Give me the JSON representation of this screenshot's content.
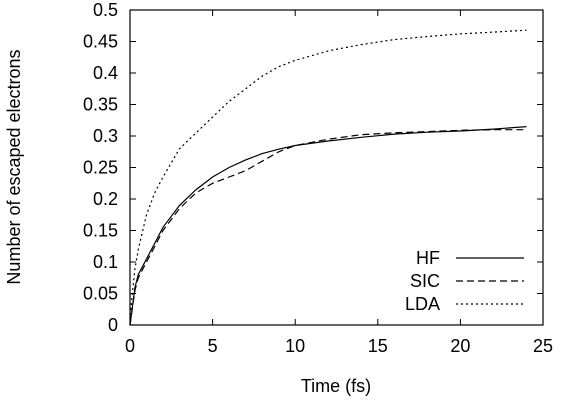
{
  "chart_data": {
    "type": "line",
    "xlabel": "Time (fs)",
    "ylabel": "Number of escaped electrons",
    "xlim": [
      0,
      25
    ],
    "ylim": [
      0,
      0.5
    ],
    "x_ticks": [
      0,
      5,
      10,
      15,
      20,
      25
    ],
    "y_ticks": [
      0,
      0.05,
      0.1,
      0.15,
      0.2,
      0.25,
      0.3,
      0.35,
      0.4,
      0.45,
      0.5
    ],
    "x_tick_labels": [
      "0",
      "5",
      "10",
      "15",
      "20",
      "25"
    ],
    "y_tick_labels": [
      "0",
      "0.05",
      "0.1",
      "0.15",
      "0.2",
      "0.25",
      "0.3",
      "0.35",
      "0.4",
      "0.45",
      "0.5"
    ],
    "grid": false,
    "legend_position": "bottom-right",
    "series": [
      {
        "name": "HF",
        "dash": "solid",
        "x": [
          0,
          0.1,
          0.3,
          0.5,
          1,
          1.5,
          2,
          3,
          4,
          5,
          6,
          7,
          8,
          9,
          10,
          12,
          14,
          16,
          18,
          20,
          22,
          24
        ],
        "y": [
          0,
          0.02,
          0.06,
          0.08,
          0.105,
          0.13,
          0.155,
          0.19,
          0.215,
          0.235,
          0.25,
          0.262,
          0.272,
          0.279,
          0.285,
          0.292,
          0.298,
          0.303,
          0.306,
          0.308,
          0.311,
          0.315
        ]
      },
      {
        "name": "SIC",
        "dash": "dashed",
        "x": [
          0,
          0.1,
          0.3,
          0.5,
          1,
          1.5,
          2,
          3,
          4,
          5,
          6,
          7,
          8,
          9,
          10,
          12,
          14,
          16,
          18,
          20,
          22,
          24
        ],
        "y": [
          0,
          0.02,
          0.055,
          0.075,
          0.1,
          0.125,
          0.15,
          0.185,
          0.21,
          0.225,
          0.235,
          0.245,
          0.26,
          0.275,
          0.285,
          0.295,
          0.302,
          0.305,
          0.307,
          0.309,
          0.31,
          0.31
        ]
      },
      {
        "name": "LDA",
        "dash": "dotted",
        "x": [
          0,
          0.1,
          0.3,
          0.5,
          1,
          1.5,
          2,
          3,
          4,
          5,
          6,
          7,
          8,
          9,
          10,
          12,
          14,
          16,
          18,
          20,
          22,
          24
        ],
        "y": [
          0,
          0.04,
          0.09,
          0.12,
          0.175,
          0.21,
          0.235,
          0.28,
          0.305,
          0.33,
          0.355,
          0.375,
          0.395,
          0.41,
          0.42,
          0.435,
          0.445,
          0.453,
          0.458,
          0.462,
          0.465,
          0.468
        ]
      }
    ]
  }
}
